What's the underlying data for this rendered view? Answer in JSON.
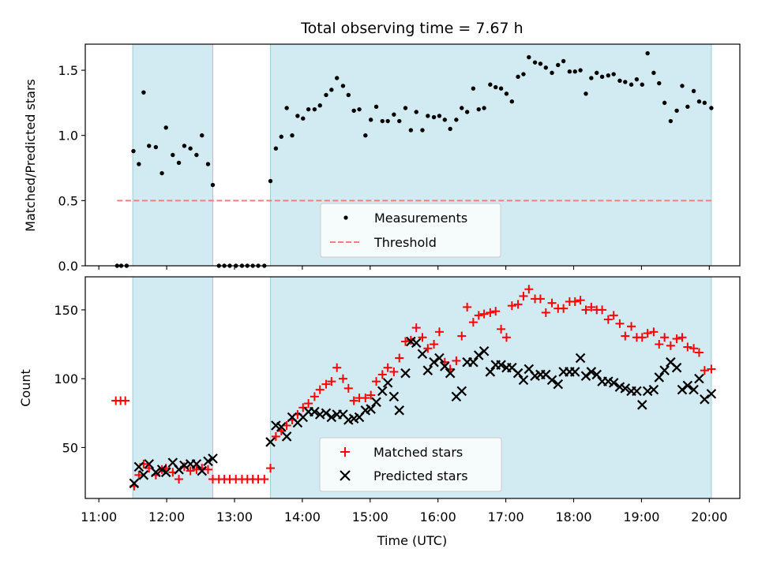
{
  "chart_data": [
    {
      "type": "scatter",
      "title": "Total observing time = 7.67 h",
      "ylabel": "Matched/Predicted stars",
      "xlabel": "",
      "xlim_hours": [
        10.8,
        20.45
      ],
      "ylim": [
        0,
        1.7
      ],
      "yticks": [
        0.0,
        0.5,
        1.0,
        1.5
      ],
      "ytick_labels": [
        "0.0",
        "0.5",
        "1.0",
        "1.5"
      ],
      "shaded_x_ranges": [
        [
          11.5,
          12.68
        ],
        [
          13.53,
          20.03
        ]
      ],
      "shade_color": "#add8e6",
      "legend": {
        "position": "lower center",
        "entries": [
          "Measurements",
          "Threshold"
        ]
      },
      "series": [
        {
          "name": "Measurements",
          "kind": "scatter",
          "color": "#000000",
          "marker": "dot",
          "x": [
            11.27,
            11.33,
            11.41,
            11.51,
            11.59,
            11.66,
            11.74,
            11.84,
            11.93,
            11.99,
            12.09,
            12.18,
            12.26,
            12.35,
            12.44,
            12.52,
            12.61,
            12.68,
            12.77,
            12.85,
            12.93,
            13.02,
            13.11,
            13.19,
            13.27,
            13.35,
            13.44,
            13.53,
            13.61,
            13.69,
            13.77,
            13.85,
            13.93,
            14.01,
            14.09,
            14.18,
            14.26,
            14.35,
            14.43,
            14.51,
            14.6,
            14.68,
            14.76,
            14.84,
            14.93,
            15.01,
            15.09,
            15.18,
            15.26,
            15.35,
            15.43,
            15.52,
            15.6,
            15.68,
            15.77,
            15.85,
            15.94,
            16.02,
            16.1,
            16.18,
            16.27,
            16.35,
            16.43,
            16.52,
            16.6,
            16.68,
            16.77,
            16.85,
            16.93,
            17.01,
            17.09,
            17.18,
            17.26,
            17.34,
            17.43,
            17.51,
            17.59,
            17.68,
            17.77,
            17.85,
            17.94,
            18.02,
            18.1,
            18.18,
            18.26,
            18.34,
            18.42,
            18.51,
            18.59,
            18.68,
            18.76,
            18.85,
            18.93,
            19.01,
            19.09,
            19.18,
            19.26,
            19.34,
            19.43,
            19.52,
            19.6,
            19.68,
            19.77,
            19.85,
            19.93,
            20.03
          ],
          "y": [
            0,
            0,
            0,
            0.88,
            0.78,
            1.33,
            0.92,
            0.91,
            0.71,
            1.06,
            0.85,
            0.79,
            0.92,
            0.9,
            0.85,
            1.0,
            0.78,
            0.62,
            0,
            0,
            0,
            0,
            0,
            0,
            0,
            0,
            0,
            0.65,
            0.9,
            0.99,
            1.21,
            1.0,
            1.15,
            1.13,
            1.2,
            1.2,
            1.23,
            1.31,
            1.35,
            1.44,
            1.38,
            1.31,
            1.19,
            1.2,
            1.0,
            1.12,
            1.22,
            1.11,
            1.11,
            1.16,
            1.11,
            1.21,
            1.04,
            1.18,
            1.04,
            1.15,
            1.14,
            1.15,
            1.12,
            1.05,
            1.12,
            1.21,
            1.18,
            1.36,
            1.2,
            1.21,
            1.39,
            1.37,
            1.36,
            1.32,
            1.26,
            1.45,
            1.47,
            1.6,
            1.56,
            1.55,
            1.52,
            1.48,
            1.54,
            1.57,
            1.49,
            1.49,
            1.5,
            1.32,
            1.44,
            1.48,
            1.45,
            1.46,
            1.47,
            1.42,
            1.41,
            1.39,
            1.43,
            1.39,
            1.63,
            1.48,
            1.4,
            1.25,
            1.11,
            1.19,
            1.38,
            1.22,
            1.34,
            1.26,
            1.25,
            1.21
          ]
        },
        {
          "name": "Threshold",
          "kind": "line",
          "color": "#f08080",
          "dashed": true,
          "x": [
            11.27,
            20.03
          ],
          "y": [
            0.5,
            0.5
          ]
        }
      ]
    },
    {
      "type": "scatter",
      "title": "",
      "ylabel": "Count",
      "xlabel": "Time (UTC)",
      "xlim_hours": [
        10.8,
        20.45
      ],
      "ylim": [
        13,
        174
      ],
      "yticks": [
        50,
        100,
        150
      ],
      "ytick_labels": [
        "50",
        "100",
        "150"
      ],
      "xticks_hours": [
        11,
        12,
        13,
        14,
        15,
        16,
        17,
        18,
        19,
        20
      ],
      "xtick_labels": [
        "11:00",
        "12:00",
        "13:00",
        "14:00",
        "15:00",
        "16:00",
        "17:00",
        "18:00",
        "19:00",
        "20:00"
      ],
      "shaded_x_ranges": [
        [
          11.5,
          12.68
        ],
        [
          13.53,
          20.03
        ]
      ],
      "shade_color": "#add8e6",
      "legend": {
        "position": "lower center",
        "entries": [
          "Matched stars",
          "Predicted stars"
        ]
      },
      "series": [
        {
          "name": "Matched stars",
          "kind": "scatter",
          "color": "#ff0000",
          "marker": "plus",
          "x": [
            11.25,
            11.32,
            11.39,
            11.52,
            11.59,
            11.66,
            11.74,
            11.84,
            11.93,
            11.99,
            12.09,
            12.18,
            12.26,
            12.35,
            12.44,
            12.52,
            12.61,
            12.68,
            12.77,
            12.85,
            12.93,
            13.02,
            13.11,
            13.19,
            13.27,
            13.35,
            13.44,
            13.53,
            13.61,
            13.69,
            13.77,
            13.85,
            13.93,
            14.01,
            14.09,
            14.18,
            14.26,
            14.35,
            14.43,
            14.51,
            14.6,
            14.68,
            14.76,
            14.84,
            14.93,
            15.01,
            15.09,
            15.18,
            15.26,
            15.35,
            15.43,
            15.52,
            15.6,
            15.68,
            15.77,
            15.85,
            15.94,
            16.02,
            16.1,
            16.18,
            16.27,
            16.35,
            16.43,
            16.52,
            16.6,
            16.68,
            16.77,
            16.85,
            16.93,
            17.01,
            17.09,
            17.18,
            17.26,
            17.34,
            17.43,
            17.51,
            17.59,
            17.68,
            17.77,
            17.85,
            17.94,
            18.02,
            18.1,
            18.18,
            18.26,
            18.34,
            18.42,
            18.51,
            18.59,
            18.68,
            18.76,
            18.85,
            18.93,
            19.01,
            19.09,
            19.18,
            19.26,
            19.34,
            19.43,
            19.52,
            19.6,
            19.68,
            19.77,
            19.85,
            19.93,
            20.03
          ],
          "y": [
            84,
            84,
            84,
            22,
            30,
            38,
            35,
            30,
            34,
            35,
            32,
            27,
            36,
            33,
            34,
            35,
            34,
            27,
            27,
            27,
            27,
            27,
            27,
            27,
            27,
            27,
            27,
            35,
            58,
            62,
            66,
            70,
            74,
            79,
            82,
            87,
            92,
            96,
            98,
            108,
            100,
            93,
            84,
            86,
            86,
            88,
            98,
            103,
            108,
            105,
            115,
            127,
            128,
            137,
            130,
            122,
            125,
            134,
            112,
            107,
            113,
            131,
            152,
            141,
            146,
            147,
            148,
            149,
            136,
            130,
            153,
            154,
            160,
            165,
            158,
            158,
            148,
            155,
            151,
            151,
            156,
            156,
            157,
            150,
            152,
            150,
            150,
            143,
            146,
            140,
            131,
            138,
            130,
            130,
            133,
            134,
            125,
            130,
            124,
            129,
            130,
            123,
            122,
            119,
            106,
            107
          ]
        },
        {
          "name": "Predicted stars",
          "kind": "scatter",
          "color": "#000000",
          "marker": "cross",
          "x": [
            11.52,
            11.59,
            11.66,
            11.74,
            11.84,
            11.93,
            11.99,
            12.09,
            12.18,
            12.26,
            12.35,
            12.44,
            12.52,
            12.61,
            12.68,
            13.53,
            13.61,
            13.69,
            13.77,
            13.85,
            13.93,
            14.01,
            14.09,
            14.18,
            14.26,
            14.35,
            14.43,
            14.51,
            14.6,
            14.68,
            14.76,
            14.84,
            14.93,
            15.01,
            15.09,
            15.18,
            15.26,
            15.35,
            15.43,
            15.52,
            15.6,
            15.68,
            15.77,
            15.85,
            15.94,
            16.02,
            16.1,
            16.18,
            16.27,
            16.35,
            16.43,
            16.52,
            16.6,
            16.68,
            16.77,
            16.85,
            16.93,
            17.01,
            17.09,
            17.18,
            17.26,
            17.34,
            17.43,
            17.51,
            17.59,
            17.68,
            17.77,
            17.85,
            17.94,
            18.02,
            18.1,
            18.18,
            18.26,
            18.34,
            18.42,
            18.51,
            18.59,
            18.68,
            18.76,
            18.85,
            18.93,
            19.01,
            19.09,
            19.18,
            19.26,
            19.34,
            19.43,
            19.52,
            19.6,
            19.68,
            19.77,
            19.85,
            19.93,
            20.03
          ],
          "y": [
            24,
            36,
            30,
            38,
            32,
            34,
            32,
            39,
            34,
            37,
            38,
            38,
            33,
            40,
            42,
            54,
            66,
            65,
            58,
            72,
            68,
            72,
            76,
            76,
            74,
            75,
            72,
            74,
            74,
            70,
            71,
            72,
            77,
            78,
            83,
            91,
            97,
            87,
            77,
            104,
            127,
            126,
            118,
            106,
            112,
            115,
            109,
            104,
            87,
            91,
            112,
            112,
            117,
            120,
            105,
            110,
            110,
            108,
            108,
            104,
            99,
            107,
            102,
            103,
            103,
            99,
            96,
            105,
            105,
            105,
            115,
            102,
            105,
            103,
            98,
            98,
            97,
            94,
            93,
            91,
            91,
            81,
            91,
            92,
            101,
            106,
            112,
            108,
            92,
            95,
            92,
            100,
            85,
            89
          ]
        }
      ]
    }
  ]
}
